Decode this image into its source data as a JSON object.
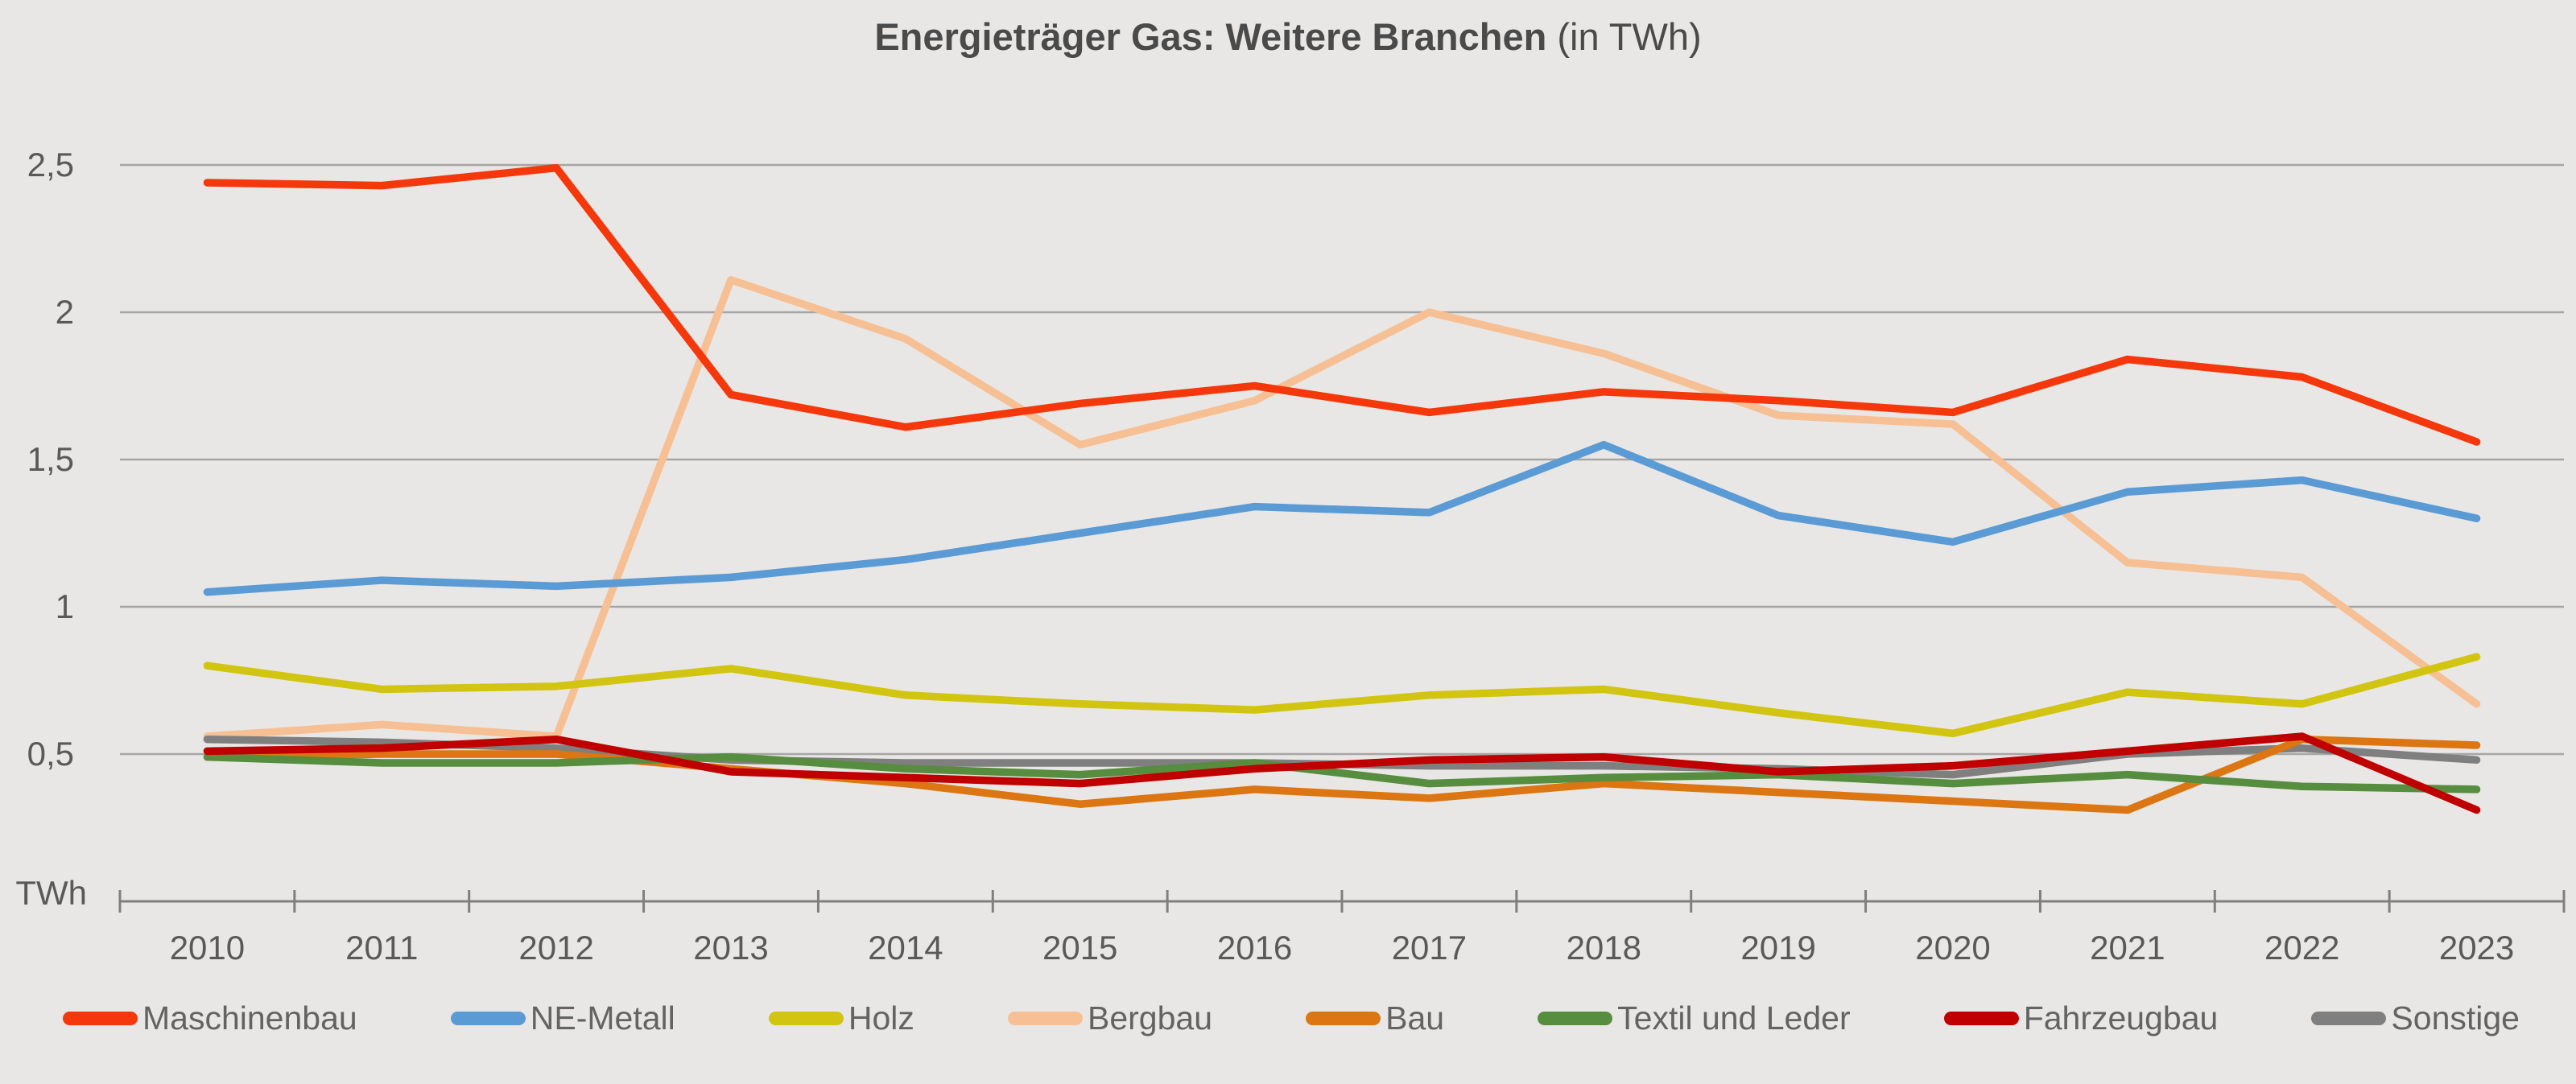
{
  "title": {
    "main": "Energieträger Gas: Weitere Branchen",
    "suffix": " (in TWh)"
  },
  "axis_unit_label": "TWh",
  "chart_data": {
    "type": "line",
    "title": "Energieträger Gas: Weitere Branchen (in TWh)",
    "xlabel": "",
    "ylabel": "TWh",
    "ylim": [
      0,
      2.75
    ],
    "grid": true,
    "legend_position": "bottom",
    "categories": [
      "2010",
      "2011",
      "2012",
      "2013",
      "2014",
      "2015",
      "2016",
      "2017",
      "2018",
      "2019",
      "2020",
      "2021",
      "2022",
      "2023"
    ],
    "y_ticks": [
      {
        "label": "2,5",
        "value": 2.5
      },
      {
        "label": "2",
        "value": 2.0
      },
      {
        "label": "1,5",
        "value": 1.5
      },
      {
        "label": "1",
        "value": 1.0
      },
      {
        "label": "0,5",
        "value": 0.5
      }
    ],
    "series": [
      {
        "name": "Maschinenbau",
        "color": "#f5380b",
        "values": [
          2.44,
          2.43,
          2.49,
          1.72,
          1.61,
          1.69,
          1.75,
          1.66,
          1.73,
          1.7,
          1.66,
          1.84,
          1.78,
          1.56
        ]
      },
      {
        "name": "NE-Metall",
        "color": "#5b9bd5",
        "values": [
          1.05,
          1.09,
          1.07,
          1.1,
          1.16,
          1.25,
          1.34,
          1.32,
          1.55,
          1.31,
          1.22,
          1.39,
          1.43,
          1.3
        ]
      },
      {
        "name": "Holz",
        "color": "#d2c511",
        "values": [
          0.8,
          0.72,
          0.73,
          0.79,
          0.7,
          0.67,
          0.65,
          0.7,
          0.72,
          0.64,
          0.57,
          0.71,
          0.67,
          0.83
        ]
      },
      {
        "name": "Bergbau",
        "color": "#f6c094",
        "values": [
          0.56,
          0.6,
          0.56,
          2.11,
          1.91,
          1.55,
          1.7,
          2.0,
          1.86,
          1.65,
          1.62,
          1.15,
          1.1,
          0.67
        ]
      },
      {
        "name": "Bau",
        "color": "#dc7613",
        "values": [
          0.49,
          0.5,
          0.5,
          0.45,
          0.4,
          0.33,
          0.38,
          0.35,
          0.4,
          0.37,
          0.34,
          0.31,
          0.55,
          0.53
        ]
      },
      {
        "name": "Textil und Leder",
        "color": "#568d3e",
        "values": [
          0.49,
          0.47,
          0.47,
          0.49,
          0.45,
          0.43,
          0.47,
          0.4,
          0.42,
          0.43,
          0.4,
          0.43,
          0.39,
          0.38
        ]
      },
      {
        "name": "Fahrzeugbau",
        "color": "#c00000",
        "values": [
          0.51,
          0.52,
          0.55,
          0.44,
          0.42,
          0.4,
          0.45,
          0.48,
          0.49,
          0.44,
          0.46,
          0.51,
          0.56,
          0.31
        ]
      },
      {
        "name": "Sonstige",
        "color": "#7f7f7f",
        "values": [
          0.55,
          0.54,
          0.52,
          0.48,
          0.47,
          0.47,
          0.47,
          0.46,
          0.46,
          0.45,
          0.43,
          0.5,
          0.52,
          0.48
        ]
      }
    ],
    "draw_order": [
      "Bergbau",
      "Sonstige",
      "Bau",
      "Textil und Leder",
      "Holz",
      "NE-Metall",
      "Fahrzeugbau",
      "Maschinenbau"
    ],
    "colors": {
      "background": "#e8e7e5",
      "gridline": "#a6a6a6",
      "axis": "#7f7f7f",
      "tick_label": "#595959",
      "title_text": "#4a4a4a",
      "legend_text": "#636363"
    }
  }
}
